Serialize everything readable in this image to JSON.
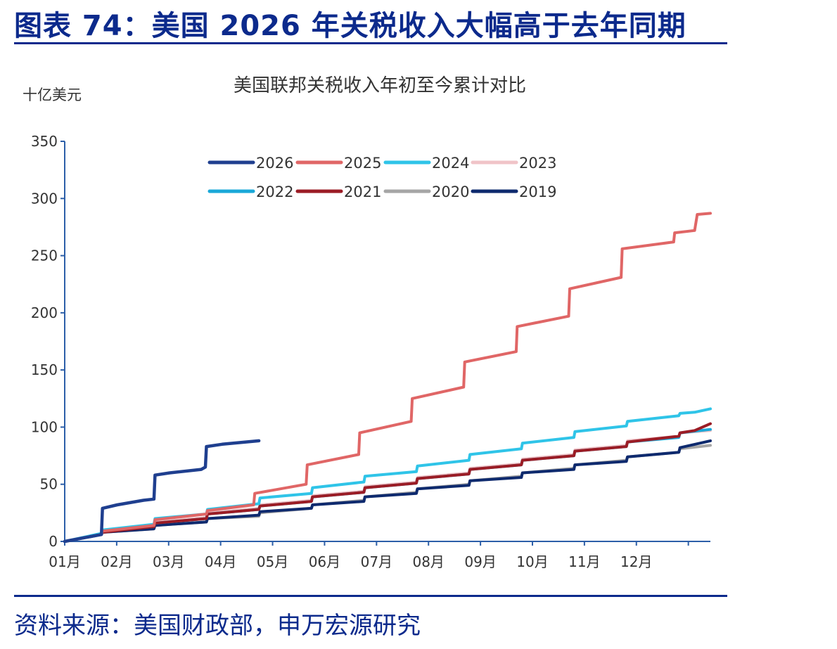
{
  "header": {
    "title": "图表 74：美国 2026 年关税收入大幅高于去年同期"
  },
  "footer": {
    "source": "资料来源：美国财政部，申万宏源研究"
  },
  "colors": {
    "brand": "#0c2a8c",
    "s2026": "#1f3f8f",
    "s2025": "#e06666",
    "s2024": "#2fc4e8",
    "s2023": "#f0c4c8",
    "s2022": "#1aa8d8",
    "s2021": "#9b1c25",
    "s2020": "#a6a6a6",
    "s2019": "#0e2a6e"
  },
  "chart_data": {
    "type": "line",
    "title": "美国联邦关税收入年初至今累计对比",
    "ylabel": "十亿美元",
    "xlabel": "",
    "ylim": [
      0,
      350
    ],
    "yticks": [
      0,
      50,
      100,
      150,
      200,
      250,
      300,
      350
    ],
    "categories": [
      "01月",
      "02月",
      "03月",
      "04月",
      "05月",
      "06月",
      "07月",
      "08月",
      "09月",
      "10月",
      "11月",
      "12月"
    ],
    "xlim": [
      0,
      12.3
    ],
    "grid": false,
    "legend_position": "top",
    "legend_order": [
      "2026",
      "2025",
      "2024",
      "2023",
      "2022",
      "2021",
      "2020",
      "2019"
    ],
    "series": [
      {
        "name": "2026",
        "color_key": "s2026",
        "width": 4.5,
        "x": [
          0,
          0.7,
          0.72,
          1.0,
          1.5,
          1.7,
          1.72,
          2.0,
          2.6,
          2.68,
          2.7,
          3.0,
          3.7
        ],
        "y": [
          0,
          6,
          29,
          32,
          36,
          37,
          58,
          60,
          63,
          65,
          83,
          85,
          88
        ]
      },
      {
        "name": "2025",
        "color_key": "s2025",
        "width": 4,
        "x": [
          0,
          0.7,
          0.72,
          1.7,
          1.72,
          2.7,
          2.72,
          3.6,
          3.62,
          4.6,
          4.62,
          5.6,
          5.62,
          6.6,
          6.62,
          7.6,
          7.62,
          8.6,
          8.62,
          9.6,
          9.62,
          10.6,
          10.62,
          11.6,
          11.62,
          12.0,
          12.05,
          12.3
        ],
        "y": [
          0,
          6,
          9,
          14,
          19,
          24,
          27,
          32,
          42,
          50,
          67,
          76,
          95,
          105,
          125,
          135,
          157,
          166,
          188,
          197,
          221,
          231,
          256,
          262,
          270,
          272,
          286,
          287
        ]
      },
      {
        "name": "2024",
        "color_key": "s2024",
        "width": 4,
        "x": [
          0,
          0.7,
          0.72,
          1.7,
          1.72,
          2.7,
          2.72,
          3.7,
          3.72,
          4.7,
          4.72,
          5.7,
          5.72,
          6.7,
          6.72,
          7.7,
          7.72,
          8.7,
          8.72,
          9.7,
          9.72,
          10.7,
          10.72,
          11.7,
          11.72,
          12.0,
          12.3
        ],
        "y": [
          0,
          7,
          10,
          15,
          20,
          24,
          28,
          33,
          38,
          42,
          47,
          52,
          57,
          61,
          66,
          71,
          76,
          81,
          86,
          91,
          96,
          101,
          105,
          110,
          112,
          113,
          116
        ]
      },
      {
        "name": "2023",
        "color_key": "s2023",
        "width": 4,
        "x": [
          0,
          0.7,
          0.72,
          1.7,
          1.72,
          2.7,
          2.72,
          3.7,
          3.72,
          4.7,
          4.72,
          5.7,
          5.72,
          6.7,
          6.72,
          7.7,
          7.72,
          8.7,
          8.72,
          9.7,
          9.72,
          10.7,
          10.72,
          11.7,
          11.72,
          12.3
        ],
        "y": [
          0,
          7,
          9,
          14,
          17,
          21,
          25,
          29,
          32,
          36,
          40,
          44,
          48,
          52,
          56,
          60,
          64,
          68,
          72,
          76,
          80,
          84,
          88,
          92,
          95,
          97
        ]
      },
      {
        "name": "2022",
        "color_key": "s2022",
        "width": 4,
        "x": [
          0,
          0.7,
          0.72,
          1.7,
          1.72,
          2.7,
          2.72,
          3.7,
          3.72,
          4.7,
          4.72,
          5.7,
          5.72,
          6.7,
          6.72,
          7.7,
          7.72,
          8.7,
          8.72,
          9.7,
          9.72,
          10.7,
          10.72,
          11.7,
          11.72,
          12.3
        ],
        "y": [
          0,
          6,
          9,
          13,
          16,
          20,
          24,
          28,
          31,
          35,
          39,
          43,
          47,
          51,
          55,
          59,
          63,
          67,
          71,
          75,
          79,
          83,
          87,
          91,
          95,
          98
        ]
      },
      {
        "name": "2021",
        "color_key": "s2021",
        "width": 4,
        "x": [
          0,
          0.7,
          0.72,
          1.7,
          1.72,
          2.7,
          2.72,
          3.7,
          3.72,
          4.7,
          4.72,
          5.7,
          5.72,
          6.7,
          6.72,
          7.7,
          7.72,
          8.7,
          8.72,
          9.7,
          9.72,
          10.7,
          10.72,
          11.7,
          11.72,
          12.0,
          12.3
        ],
        "y": [
          0,
          6,
          8,
          13,
          16,
          20,
          24,
          28,
          31,
          35,
          39,
          43,
          47,
          51,
          55,
          59,
          63,
          67,
          71,
          75,
          79,
          83,
          87,
          92,
          95,
          97,
          103
        ]
      },
      {
        "name": "2020",
        "color_key": "s2020",
        "width": 4,
        "x": [
          0,
          0.7,
          0.72,
          1.7,
          1.72,
          2.7,
          2.72,
          3.7,
          3.72,
          4.7,
          4.72,
          5.7,
          5.72,
          6.7,
          6.72,
          7.7,
          7.72,
          8.7,
          8.72,
          9.7,
          9.72,
          10.7,
          10.72,
          11.7,
          11.72,
          12.3
        ],
        "y": [
          0,
          6,
          8,
          11,
          14,
          17,
          20,
          22,
          25,
          29,
          32,
          36,
          39,
          43,
          46,
          50,
          53,
          57,
          60,
          64,
          67,
          71,
          74,
          78,
          81,
          84
        ]
      },
      {
        "name": "2019",
        "color_key": "s2019",
        "width": 4,
        "x": [
          0,
          0.7,
          0.72,
          1.7,
          1.72,
          2.7,
          2.72,
          3.7,
          3.72,
          4.7,
          4.72,
          5.7,
          5.72,
          6.7,
          6.72,
          7.7,
          7.72,
          8.7,
          8.72,
          9.7,
          9.72,
          10.7,
          10.72,
          11.7,
          11.72,
          12.3
        ],
        "y": [
          0,
          6,
          8,
          11,
          14,
          17,
          20,
          23,
          26,
          29,
          32,
          35,
          39,
          42,
          46,
          49,
          53,
          56,
          60,
          63,
          67,
          70,
          74,
          78,
          82,
          88
        ]
      }
    ]
  }
}
